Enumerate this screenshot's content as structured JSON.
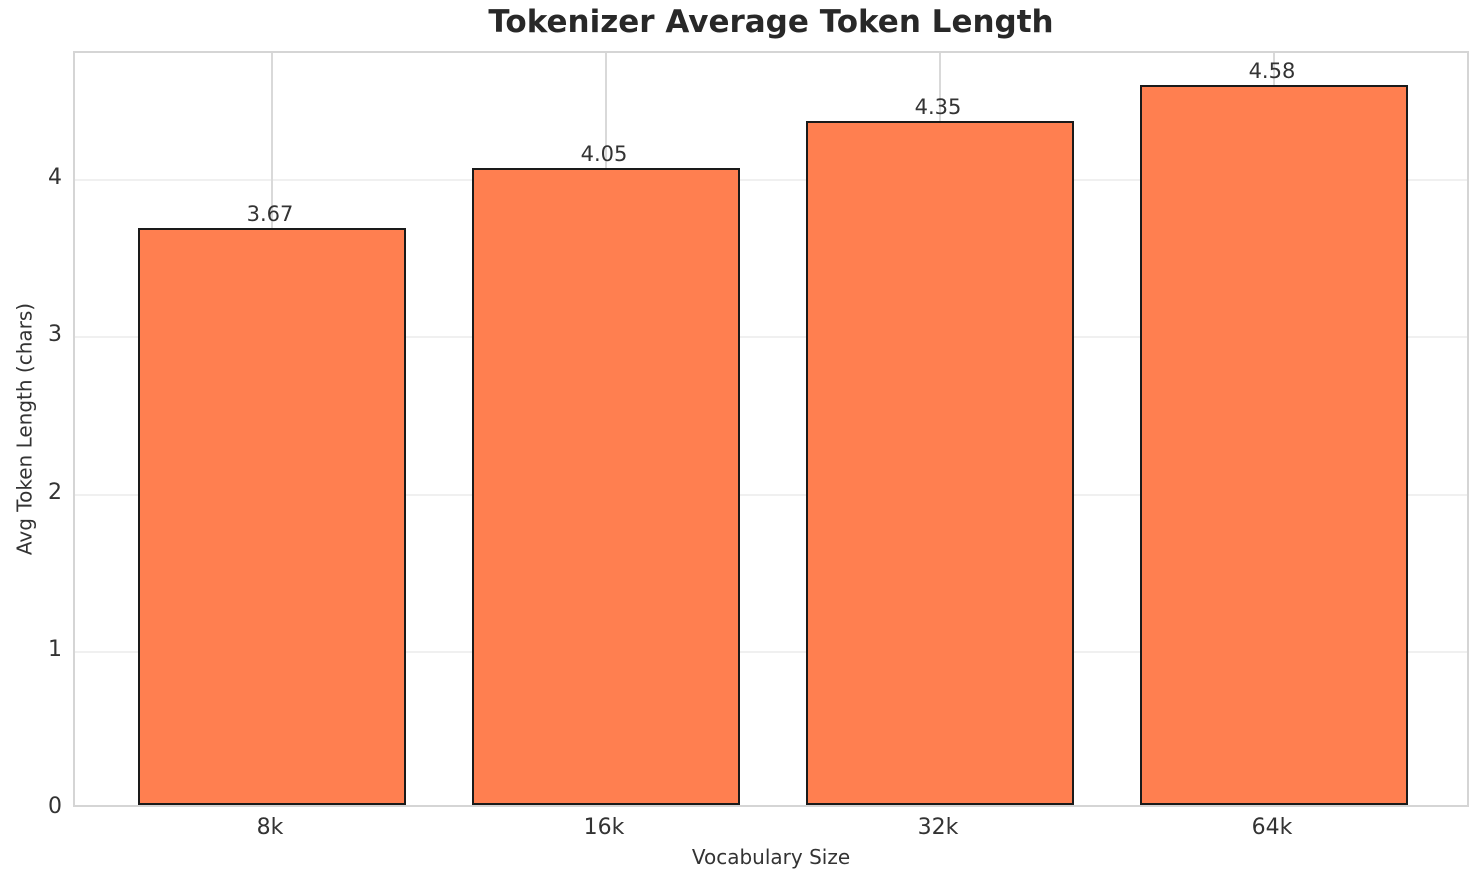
{
  "chart_data": {
    "type": "bar",
    "title": "Tokenizer Average Token Length",
    "xlabel": "Vocabulary Size",
    "ylabel": "Avg Token Length (chars)",
    "categories": [
      "8k",
      "16k",
      "32k",
      "64k"
    ],
    "values": [
      3.67,
      4.05,
      4.35,
      4.58
    ],
    "bar_labels": [
      "3.67",
      "4.05",
      "4.35",
      "4.58"
    ],
    "yticks": [
      "0",
      "1",
      "2",
      "3",
      "4"
    ],
    "ylim": [
      0,
      4.81
    ],
    "xlim_pad": 0.59,
    "bar_width": 0.8,
    "grid": true,
    "legend": false,
    "colors": {
      "bar_fill": "#ff7f50",
      "bar_edge": "#1a1a1a",
      "grid_horizontal": "#f0f0f0",
      "grid_vertical": "#d9d9d9",
      "spine": "#d5d5d5",
      "text": "#333333",
      "title": "#282828",
      "background": "#ffffff"
    }
  }
}
